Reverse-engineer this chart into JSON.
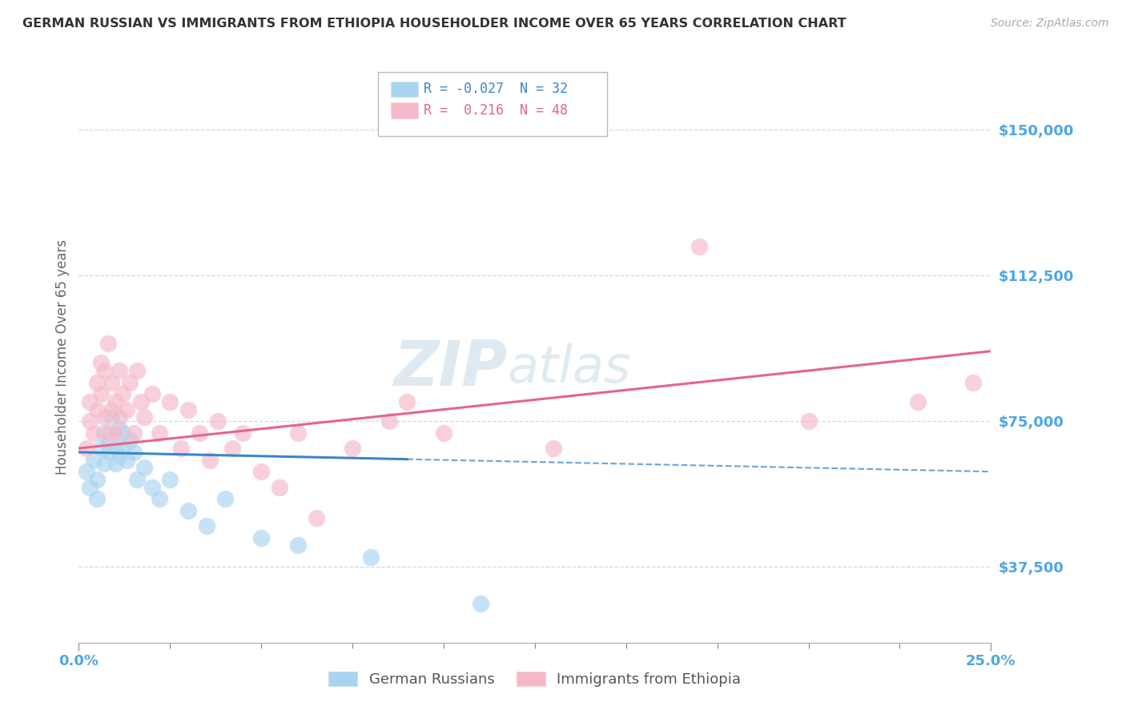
{
  "title": "GERMAN RUSSIAN VS IMMIGRANTS FROM ETHIOPIA HOUSEHOLDER INCOME OVER 65 YEARS CORRELATION CHART",
  "source": "Source: ZipAtlas.com",
  "ylabel": "Householder Income Over 65 years",
  "y_ticks": [
    37500,
    75000,
    112500,
    150000
  ],
  "y_tick_labels": [
    "$37,500",
    "$75,000",
    "$112,500",
    "$150,000"
  ],
  "x_range": [
    0.0,
    0.25
  ],
  "y_range": [
    18000,
    165000
  ],
  "watermark_zip": "ZIP",
  "watermark_atlas": "atlas",
  "blue_color": "#a8d4f0",
  "pink_color": "#f5b8c8",
  "blue_line_color": "#3a86c8",
  "pink_line_color": "#e8648a",
  "axis_label_color": "#4da6e8",
  "grid_color": "#d0d8e8",
  "blue_scatter_x": [
    0.002,
    0.003,
    0.004,
    0.005,
    0.005,
    0.006,
    0.007,
    0.007,
    0.008,
    0.008,
    0.009,
    0.01,
    0.01,
    0.011,
    0.011,
    0.012,
    0.012,
    0.013,
    0.014,
    0.015,
    0.016,
    0.018,
    0.02,
    0.022,
    0.025,
    0.03,
    0.035,
    0.04,
    0.05,
    0.06,
    0.08,
    0.11
  ],
  "blue_scatter_y": [
    62000,
    58000,
    65000,
    60000,
    55000,
    68000,
    72000,
    64000,
    70000,
    67000,
    76000,
    68000,
    64000,
    73000,
    66000,
    72000,
    68000,
    65000,
    70000,
    67000,
    60000,
    63000,
    58000,
    55000,
    60000,
    52000,
    48000,
    55000,
    45000,
    43000,
    40000,
    28000
  ],
  "pink_scatter_x": [
    0.002,
    0.003,
    0.003,
    0.004,
    0.005,
    0.005,
    0.006,
    0.006,
    0.007,
    0.007,
    0.008,
    0.008,
    0.009,
    0.009,
    0.01,
    0.01,
    0.011,
    0.011,
    0.012,
    0.013,
    0.014,
    0.015,
    0.016,
    0.017,
    0.018,
    0.02,
    0.022,
    0.025,
    0.028,
    0.03,
    0.033,
    0.036,
    0.038,
    0.042,
    0.045,
    0.05,
    0.055,
    0.06,
    0.065,
    0.075,
    0.085,
    0.09,
    0.1,
    0.13,
    0.17,
    0.2,
    0.23,
    0.245
  ],
  "pink_scatter_y": [
    68000,
    75000,
    80000,
    72000,
    85000,
    78000,
    90000,
    82000,
    88000,
    76000,
    95000,
    72000,
    85000,
    78000,
    80000,
    72000,
    88000,
    76000,
    82000,
    78000,
    85000,
    72000,
    88000,
    80000,
    76000,
    82000,
    72000,
    80000,
    68000,
    78000,
    72000,
    65000,
    75000,
    68000,
    72000,
    62000,
    58000,
    72000,
    50000,
    68000,
    75000,
    80000,
    72000,
    68000,
    120000,
    75000,
    80000,
    85000
  ],
  "blue_line_solid_end": 0.09,
  "blue_line_x0": 0.0,
  "blue_line_x1": 0.25,
  "blue_line_y0": 67000,
  "blue_line_y1": 62000,
  "pink_line_x0": 0.0,
  "pink_line_x1": 0.25,
  "pink_line_y0": 68000,
  "pink_line_y1": 93000
}
